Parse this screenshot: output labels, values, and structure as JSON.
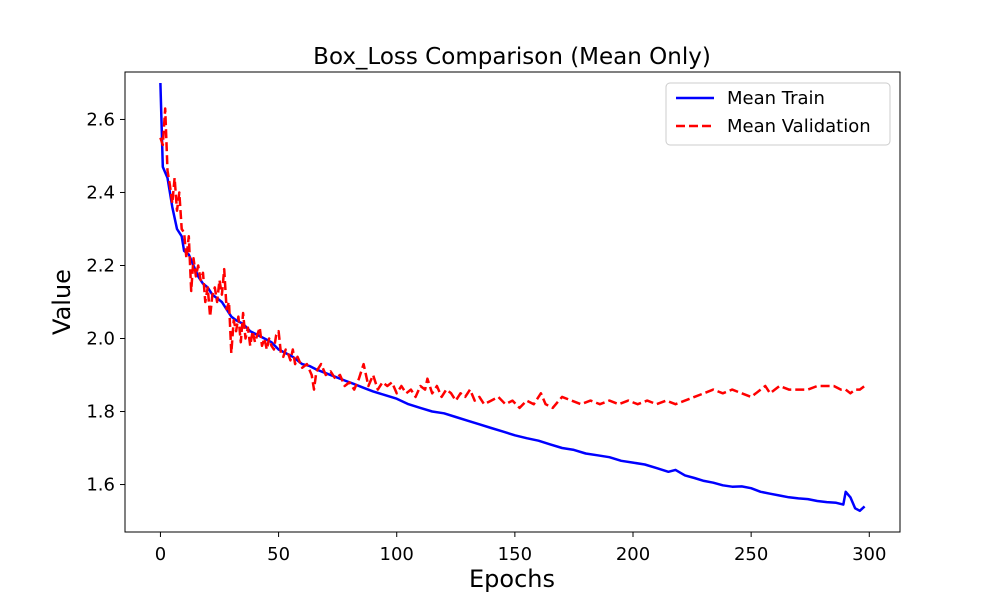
{
  "chart_data": {
    "type": "line",
    "title": "Box_Loss Comparison (Mean Only)",
    "xlabel": "Epochs",
    "ylabel": "Value",
    "xlim": [
      -15,
      313
    ],
    "ylim": [
      1.47,
      2.73
    ],
    "xticks": [
      0,
      50,
      100,
      150,
      200,
      250,
      300
    ],
    "yticks": [
      1.6,
      1.8,
      2.0,
      2.2,
      2.4,
      2.6
    ],
    "xtick_labels": [
      "0",
      "50",
      "100",
      "150",
      "200",
      "250",
      "300"
    ],
    "ytick_labels": [
      "1.6",
      "1.8",
      "2.0",
      "2.2",
      "2.4",
      "2.6"
    ],
    "grid": false,
    "legend_position": "top-right",
    "series": [
      {
        "name": "Mean Train",
        "color": "#0000ff",
        "style": "solid",
        "points": [
          [
            0,
            2.7
          ],
          [
            1,
            2.47
          ],
          [
            3,
            2.44
          ],
          [
            5,
            2.36
          ],
          [
            7,
            2.3
          ],
          [
            9,
            2.28
          ],
          [
            10,
            2.24
          ],
          [
            12,
            2.23
          ],
          [
            14,
            2.2
          ],
          [
            16,
            2.17
          ],
          [
            18,
            2.15
          ],
          [
            20,
            2.14
          ],
          [
            22,
            2.12
          ],
          [
            24,
            2.11
          ],
          [
            26,
            2.1
          ],
          [
            28,
            2.08
          ],
          [
            30,
            2.06
          ],
          [
            32,
            2.05
          ],
          [
            35,
            2.04
          ],
          [
            38,
            2.02
          ],
          [
            41,
            2.01
          ],
          [
            44,
            2.0
          ],
          [
            47,
            1.99
          ],
          [
            50,
            1.97
          ],
          [
            53,
            1.96
          ],
          [
            56,
            1.95
          ],
          [
            60,
            1.93
          ],
          [
            63,
            1.925
          ],
          [
            66,
            1.915
          ],
          [
            70,
            1.905
          ],
          [
            74,
            1.895
          ],
          [
            78,
            1.885
          ],
          [
            82,
            1.875
          ],
          [
            86,
            1.865
          ],
          [
            90,
            1.855
          ],
          [
            95,
            1.845
          ],
          [
            100,
            1.835
          ],
          [
            105,
            1.82
          ],
          [
            110,
            1.81
          ],
          [
            115,
            1.8
          ],
          [
            120,
            1.795
          ],
          [
            125,
            1.785
          ],
          [
            130,
            1.775
          ],
          [
            135,
            1.765
          ],
          [
            140,
            1.755
          ],
          [
            145,
            1.745
          ],
          [
            150,
            1.735
          ],
          [
            155,
            1.727
          ],
          [
            160,
            1.72
          ],
          [
            165,
            1.71
          ],
          [
            170,
            1.7
          ],
          [
            175,
            1.695
          ],
          [
            180,
            1.685
          ],
          [
            185,
            1.68
          ],
          [
            190,
            1.675
          ],
          [
            195,
            1.665
          ],
          [
            200,
            1.66
          ],
          [
            205,
            1.655
          ],
          [
            210,
            1.645
          ],
          [
            215,
            1.635
          ],
          [
            218,
            1.64
          ],
          [
            222,
            1.625
          ],
          [
            226,
            1.618
          ],
          [
            230,
            1.61
          ],
          [
            234,
            1.605
          ],
          [
            238,
            1.598
          ],
          [
            242,
            1.594
          ],
          [
            246,
            1.595
          ],
          [
            250,
            1.59
          ],
          [
            254,
            1.58
          ],
          [
            258,
            1.575
          ],
          [
            262,
            1.57
          ],
          [
            266,
            1.565
          ],
          [
            270,
            1.562
          ],
          [
            274,
            1.56
          ],
          [
            278,
            1.555
          ],
          [
            282,
            1.552
          ],
          [
            286,
            1.55
          ],
          [
            289,
            1.545
          ],
          [
            290,
            1.58
          ],
          [
            292,
            1.565
          ],
          [
            294,
            1.535
          ],
          [
            296,
            1.528
          ],
          [
            298,
            1.54
          ]
        ]
      },
      {
        "name": "Mean Validation",
        "color": "#ff0000",
        "style": "dashed",
        "points": [
          [
            0,
            2.55
          ],
          [
            1,
            2.53
          ],
          [
            2,
            2.63
          ],
          [
            3,
            2.46
          ],
          [
            4,
            2.42
          ],
          [
            5,
            2.37
          ],
          [
            6,
            2.44
          ],
          [
            7,
            2.35
          ],
          [
            8,
            2.4
          ],
          [
            9,
            2.3
          ],
          [
            10,
            2.29
          ],
          [
            11,
            2.22
          ],
          [
            12,
            2.28
          ],
          [
            13,
            2.13
          ],
          [
            14,
            2.22
          ],
          [
            15,
            2.17
          ],
          [
            16,
            2.2
          ],
          [
            17,
            2.16
          ],
          [
            18,
            2.18
          ],
          [
            19,
            2.1
          ],
          [
            20,
            2.14
          ],
          [
            21,
            2.06
          ],
          [
            22,
            2.12
          ],
          [
            23,
            2.14
          ],
          [
            24,
            2.1
          ],
          [
            25,
            2.16
          ],
          [
            26,
            2.12
          ],
          [
            27,
            2.19
          ],
          [
            28,
            2.08
          ],
          [
            29,
            2.1
          ],
          [
            30,
            1.96
          ],
          [
            31,
            2.05
          ],
          [
            32,
            2.02
          ],
          [
            33,
            2.06
          ],
          [
            34,
            1.99
          ],
          [
            35,
            2.07
          ],
          [
            36,
            2.0
          ],
          [
            37,
            2.03
          ],
          [
            38,
            1.98
          ],
          [
            39,
            2.02
          ],
          [
            40,
            1.99
          ],
          [
            41,
            2.01
          ],
          [
            42,
            2.03
          ],
          [
            43,
            1.98
          ],
          [
            44,
            2.0
          ],
          [
            45,
            1.97
          ],
          [
            46,
            2.0
          ],
          [
            47,
            1.98
          ],
          [
            48,
            1.97
          ],
          [
            49,
            2.01
          ],
          [
            50,
            2.02
          ],
          [
            51,
            1.96
          ],
          [
            52,
            1.95
          ],
          [
            53,
            1.97
          ],
          [
            54,
            1.96
          ],
          [
            55,
            1.94
          ],
          [
            56,
            1.97
          ],
          [
            57,
            1.93
          ],
          [
            58,
            1.95
          ],
          [
            60,
            1.92
          ],
          [
            62,
            1.93
          ],
          [
            64,
            1.9
          ],
          [
            65,
            1.86
          ],
          [
            66,
            1.91
          ],
          [
            68,
            1.93
          ],
          [
            70,
            1.9
          ],
          [
            72,
            1.91
          ],
          [
            74,
            1.89
          ],
          [
            76,
            1.9
          ],
          [
            78,
            1.87
          ],
          [
            80,
            1.88
          ],
          [
            82,
            1.86
          ],
          [
            84,
            1.89
          ],
          [
            86,
            1.93
          ],
          [
            88,
            1.87
          ],
          [
            90,
            1.9
          ],
          [
            92,
            1.86
          ],
          [
            94,
            1.88
          ],
          [
            96,
            1.87
          ],
          [
            98,
            1.88
          ],
          [
            100,
            1.85
          ],
          [
            102,
            1.87
          ],
          [
            104,
            1.85
          ],
          [
            106,
            1.86
          ],
          [
            108,
            1.84
          ],
          [
            110,
            1.87
          ],
          [
            112,
            1.86
          ],
          [
            113,
            1.89
          ],
          [
            115,
            1.85
          ],
          [
            117,
            1.87
          ],
          [
            119,
            1.84
          ],
          [
            121,
            1.86
          ],
          [
            123,
            1.85
          ],
          [
            125,
            1.83
          ],
          [
            127,
            1.85
          ],
          [
            129,
            1.84
          ],
          [
            131,
            1.86
          ],
          [
            133,
            1.83
          ],
          [
            135,
            1.84
          ],
          [
            137,
            1.82
          ],
          [
            140,
            1.83
          ],
          [
            143,
            1.84
          ],
          [
            146,
            1.82
          ],
          [
            149,
            1.83
          ],
          [
            152,
            1.81
          ],
          [
            155,
            1.83
          ],
          [
            158,
            1.82
          ],
          [
            161,
            1.85
          ],
          [
            163,
            1.82
          ],
          [
            166,
            1.81
          ],
          [
            170,
            1.84
          ],
          [
            174,
            1.83
          ],
          [
            178,
            1.82
          ],
          [
            182,
            1.83
          ],
          [
            186,
            1.82
          ],
          [
            190,
            1.83
          ],
          [
            194,
            1.82
          ],
          [
            198,
            1.83
          ],
          [
            202,
            1.82
          ],
          [
            206,
            1.83
          ],
          [
            210,
            1.82
          ],
          [
            214,
            1.83
          ],
          [
            218,
            1.82
          ],
          [
            222,
            1.83
          ],
          [
            226,
            1.84
          ],
          [
            230,
            1.85
          ],
          [
            234,
            1.86
          ],
          [
            238,
            1.85
          ],
          [
            242,
            1.86
          ],
          [
            246,
            1.85
          ],
          [
            250,
            1.84
          ],
          [
            252,
            1.85
          ],
          [
            254,
            1.86
          ],
          [
            256,
            1.87
          ],
          [
            258,
            1.85
          ],
          [
            260,
            1.86
          ],
          [
            262,
            1.87
          ],
          [
            266,
            1.86
          ],
          [
            270,
            1.86
          ],
          [
            274,
            1.86
          ],
          [
            278,
            1.87
          ],
          [
            282,
            1.87
          ],
          [
            285,
            1.87
          ],
          [
            288,
            1.86
          ],
          [
            290,
            1.86
          ],
          [
            292,
            1.85
          ],
          [
            294,
            1.86
          ],
          [
            296,
            1.86
          ],
          [
            298,
            1.87
          ]
        ]
      }
    ]
  }
}
